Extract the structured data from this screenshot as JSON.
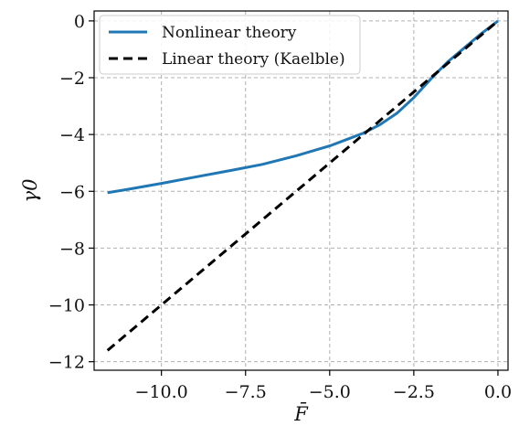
{
  "chart_data": {
    "type": "line",
    "xlabel": "F̄",
    "ylabel": "γ0",
    "xlim": [
      -12.0,
      0.3
    ],
    "ylim": [
      -12.3,
      0.35
    ],
    "grid": true,
    "legend_placement": "top-left",
    "x_ticks": [
      -10.0,
      -7.5,
      -5.0,
      -2.5,
      0.0
    ],
    "x_tick_labels": [
      "−10.0",
      "−7.5",
      "−5.0",
      "−2.5",
      "0.0"
    ],
    "y_ticks": [
      0,
      -2,
      -4,
      -6,
      -8,
      -10,
      -12
    ],
    "y_tick_labels": [
      "0",
      "−2",
      "−4",
      "−6",
      "−8",
      "−10",
      "−12"
    ],
    "series": [
      {
        "name": "Nonlinear theory",
        "color": "#1f77b4",
        "dash": "solid",
        "x": [
          -11.6,
          -11.0,
          -10.0,
          -9.0,
          -8.0,
          -7.0,
          -6.0,
          -5.0,
          -4.5,
          -4.0,
          -3.5,
          -3.0,
          -2.5,
          -2.0,
          -1.5,
          -1.0,
          -0.5,
          0.0
        ],
        "y": [
          -6.05,
          -5.93,
          -5.72,
          -5.5,
          -5.28,
          -5.05,
          -4.75,
          -4.4,
          -4.18,
          -3.95,
          -3.65,
          -3.25,
          -2.7,
          -2.05,
          -1.45,
          -0.95,
          -0.45,
          0.0
        ]
      },
      {
        "name": "Linear theory (Kaelble)",
        "color": "#000000",
        "dash": "dashed",
        "x": [
          -11.6,
          0.0
        ],
        "y": [
          -11.6,
          0.0
        ]
      }
    ]
  }
}
